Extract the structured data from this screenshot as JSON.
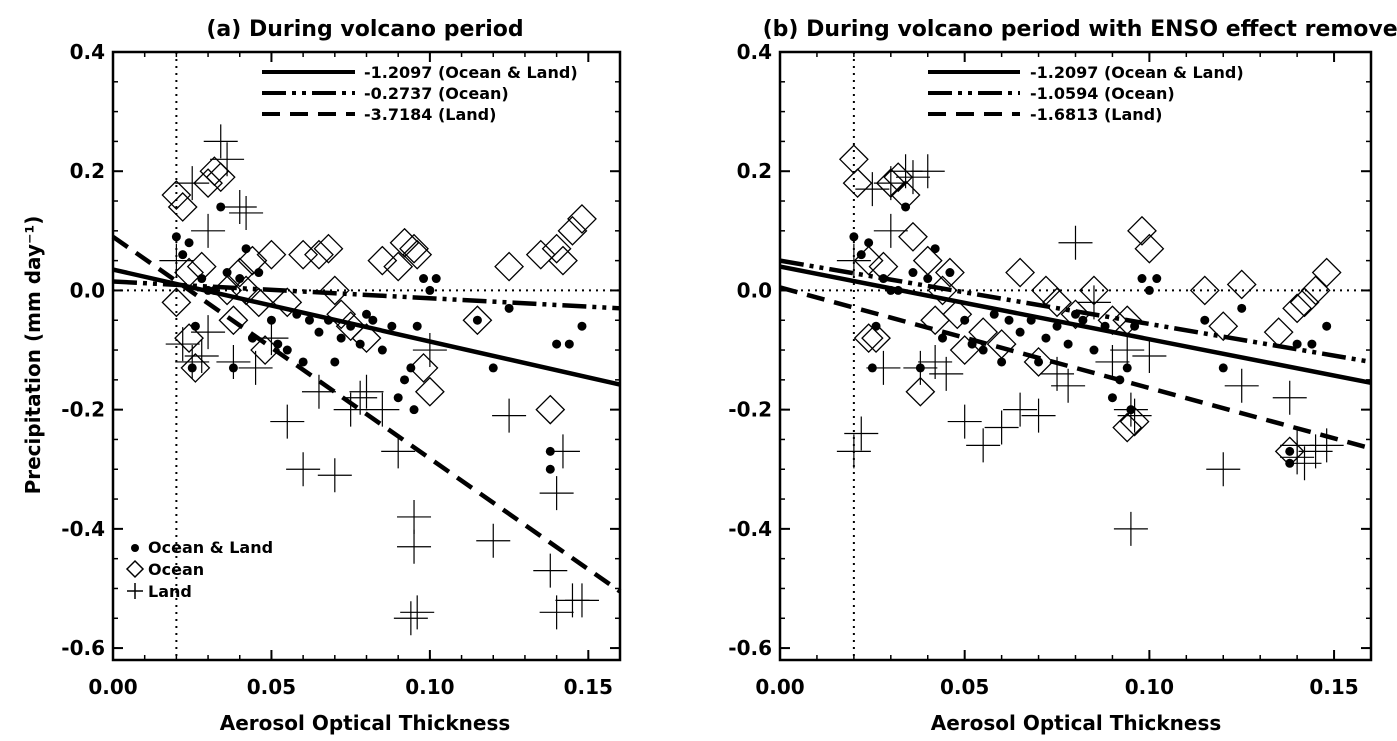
{
  "chart_data": [
    {
      "type": "scatter",
      "title": "(a) During volcano period",
      "xlabel": "Aerosol Optical Thickness",
      "ylabel": "Precipitation (mm day⁻¹)",
      "xlim": [
        0.0,
        0.16
      ],
      "ylim": [
        -0.62,
        0.4
      ],
      "xticks": [
        "0.00",
        "0.05",
        "0.10",
        "0.15"
      ],
      "yticks": [
        "-0.6",
        "-0.4",
        "-0.2",
        "0.0",
        "0.2",
        "0.4"
      ],
      "reference_lines": {
        "vertical_x": 0.02,
        "horizontal_y": 0.0
      },
      "grid": false,
      "fit_legend_placement": "top",
      "marker_legend_placement": "bottom-left",
      "fit_lines": [
        {
          "label": "-1.2097 (Ocean & Land)",
          "style": "solid",
          "x": [
            0.0,
            0.16
          ],
          "y": [
            0.035,
            -0.158
          ]
        },
        {
          "label": "-0.2737 (Ocean)",
          "style": "dash-dot-dot",
          "x": [
            0.0,
            0.16
          ],
          "y": [
            0.015,
            -0.03
          ]
        },
        {
          "label": "-3.7184 (Land)",
          "style": "dashed",
          "x": [
            0.0,
            0.16
          ],
          "y": [
            0.09,
            -0.505
          ]
        }
      ],
      "series": [
        {
          "name": "Ocean & Land",
          "marker": "dot",
          "x": [
            0.02,
            0.022,
            0.024,
            0.025,
            0.026,
            0.028,
            0.03,
            0.032,
            0.034,
            0.036,
            0.038,
            0.04,
            0.042,
            0.044,
            0.046,
            0.05,
            0.052,
            0.055,
            0.058,
            0.06,
            0.062,
            0.065,
            0.068,
            0.07,
            0.072,
            0.075,
            0.078,
            0.08,
            0.082,
            0.085,
            0.088,
            0.09,
            0.092,
            0.094,
            0.095,
            0.096,
            0.098,
            0.1,
            0.102,
            0.115,
            0.12,
            0.125,
            0.138,
            0.138,
            0.14,
            0.144,
            0.148
          ],
          "y": [
            0.09,
            0.06,
            0.08,
            -0.13,
            -0.06,
            0.02,
            0.0,
            0.0,
            0.14,
            0.03,
            -0.13,
            0.02,
            0.07,
            -0.08,
            0.03,
            -0.05,
            -0.09,
            -0.1,
            -0.04,
            -0.12,
            -0.05,
            -0.07,
            -0.05,
            -0.12,
            -0.08,
            -0.06,
            -0.09,
            -0.04,
            -0.05,
            -0.1,
            -0.06,
            -0.18,
            -0.15,
            -0.13,
            -0.2,
            -0.06,
            0.02,
            0.0,
            0.02,
            -0.05,
            -0.13,
            -0.03,
            -0.27,
            -0.3,
            -0.09,
            -0.09,
            -0.06
          ]
        },
        {
          "name": "Ocean",
          "marker": "diamond",
          "x": [
            0.02,
            0.022,
            0.024,
            0.026,
            0.028,
            0.03,
            0.032,
            0.034,
            0.036,
            0.038,
            0.04,
            0.042,
            0.044,
            0.046,
            0.048,
            0.05,
            0.055,
            0.06,
            0.065,
            0.068,
            0.07,
            0.072,
            0.075,
            0.08,
            0.085,
            0.09,
            0.092,
            0.095,
            0.096,
            0.098,
            0.1,
            0.115,
            0.125,
            0.135,
            0.14,
            0.142,
            0.145,
            0.148,
            0.138,
            0.02,
            0.024
          ],
          "y": [
            0.16,
            0.14,
            0.03,
            -0.13,
            0.04,
            0.18,
            0.2,
            0.19,
            0.0,
            -0.05,
            0.03,
            0.0,
            0.05,
            -0.02,
            -0.1,
            0.06,
            -0.02,
            0.06,
            0.06,
            0.07,
            0.0,
            -0.04,
            -0.06,
            -0.08,
            0.05,
            0.04,
            0.08,
            0.07,
            0.06,
            -0.13,
            -0.17,
            -0.05,
            0.04,
            0.06,
            0.07,
            0.05,
            0.1,
            0.12,
            -0.2,
            -0.02,
            -0.08
          ]
        },
        {
          "name": "Land",
          "marker": "plus",
          "x": [
            0.02,
            0.022,
            0.025,
            0.028,
            0.03,
            0.034,
            0.036,
            0.038,
            0.04,
            0.042,
            0.045,
            0.05,
            0.055,
            0.06,
            0.065,
            0.07,
            0.075,
            0.078,
            0.08,
            0.085,
            0.09,
            0.095,
            0.095,
            0.096,
            0.1,
            0.12,
            0.125,
            0.138,
            0.14,
            0.14,
            0.142,
            0.145,
            0.148,
            0.094,
            0.03,
            0.025
          ],
          "y": [
            0.05,
            -0.09,
            0.18,
            -0.11,
            0.1,
            0.25,
            0.22,
            -0.12,
            0.14,
            0.13,
            -0.13,
            -0.08,
            -0.22,
            -0.3,
            -0.17,
            -0.31,
            -0.2,
            -0.18,
            -0.17,
            -0.2,
            -0.27,
            -0.38,
            -0.43,
            -0.54,
            -0.1,
            -0.42,
            -0.21,
            -0.47,
            -0.34,
            -0.54,
            -0.27,
            -0.52,
            -0.52,
            -0.55,
            -0.07,
            -0.12
          ]
        }
      ]
    },
    {
      "type": "scatter",
      "title": "(b) During volcano period with ENSO effect removed",
      "xlabel": "Aerosol Optical Thickness",
      "ylabel": "",
      "xlim": [
        0.0,
        0.16
      ],
      "ylim": [
        -0.62,
        0.4
      ],
      "xticks": [
        "0.00",
        "0.05",
        "0.10",
        "0.15"
      ],
      "yticks": [
        "-0.6",
        "-0.4",
        "-0.2",
        "0.0",
        "0.2",
        "0.4"
      ],
      "reference_lines": {
        "vertical_x": 0.02,
        "horizontal_y": 0.0
      },
      "grid": false,
      "fit_legend_placement": "top",
      "fit_lines": [
        {
          "label": "-1.2097 (Ocean & Land)",
          "style": "solid",
          "x": [
            0.0,
            0.16
          ],
          "y": [
            0.04,
            -0.155
          ]
        },
        {
          "label": "-1.0594 (Ocean)",
          "style": "dash-dot-dot",
          "x": [
            0.0,
            0.16
          ],
          "y": [
            0.05,
            -0.12
          ]
        },
        {
          "label": "-1.6813 (Land)",
          "style": "dashed",
          "x": [
            0.0,
            0.16
          ],
          "y": [
            0.005,
            -0.265
          ]
        }
      ],
      "series": [
        {
          "name": "Ocean & Land",
          "marker": "dot",
          "x": [
            0.02,
            0.022,
            0.024,
            0.025,
            0.026,
            0.028,
            0.03,
            0.032,
            0.034,
            0.036,
            0.038,
            0.04,
            0.042,
            0.044,
            0.046,
            0.05,
            0.052,
            0.055,
            0.058,
            0.06,
            0.062,
            0.065,
            0.068,
            0.07,
            0.072,
            0.075,
            0.078,
            0.08,
            0.082,
            0.085,
            0.088,
            0.09,
            0.092,
            0.094,
            0.095,
            0.096,
            0.098,
            0.1,
            0.102,
            0.115,
            0.12,
            0.125,
            0.138,
            0.138,
            0.14,
            0.144,
            0.148
          ],
          "y": [
            0.09,
            0.06,
            0.08,
            -0.13,
            -0.06,
            0.02,
            0.0,
            0.0,
            0.14,
            0.03,
            -0.13,
            0.02,
            0.07,
            -0.08,
            0.03,
            -0.05,
            -0.09,
            -0.1,
            -0.04,
            -0.12,
            -0.05,
            -0.07,
            -0.05,
            -0.12,
            -0.08,
            -0.06,
            -0.09,
            -0.04,
            -0.05,
            -0.1,
            -0.06,
            -0.18,
            -0.15,
            -0.13,
            -0.2,
            -0.06,
            0.02,
            0.0,
            0.02,
            -0.05,
            -0.13,
            -0.03,
            -0.27,
            -0.29,
            -0.09,
            -0.09,
            -0.06
          ]
        },
        {
          "name": "Ocean",
          "marker": "diamond",
          "x": [
            0.02,
            0.021,
            0.024,
            0.026,
            0.028,
            0.03,
            0.032,
            0.034,
            0.036,
            0.038,
            0.04,
            0.042,
            0.044,
            0.046,
            0.048,
            0.05,
            0.055,
            0.06,
            0.065,
            0.07,
            0.072,
            0.075,
            0.08,
            0.085,
            0.09,
            0.094,
            0.096,
            0.098,
            0.1,
            0.115,
            0.12,
            0.125,
            0.135,
            0.138,
            0.14,
            0.142,
            0.145,
            0.148,
            0.094,
            0.024
          ],
          "y": [
            0.22,
            0.18,
            0.05,
            -0.08,
            0.04,
            0.18,
            0.19,
            0.16,
            0.09,
            -0.17,
            0.05,
            -0.05,
            0.0,
            0.03,
            -0.04,
            -0.1,
            -0.07,
            -0.09,
            0.03,
            -0.12,
            0.0,
            -0.02,
            -0.04,
            0.0,
            -0.05,
            -0.23,
            -0.22,
            0.1,
            0.07,
            0.0,
            -0.06,
            0.01,
            -0.07,
            -0.27,
            -0.03,
            -0.02,
            0.0,
            0.03,
            -0.05,
            -0.08
          ]
        },
        {
          "name": "Land",
          "marker": "plus",
          "x": [
            0.02,
            0.022,
            0.025,
            0.028,
            0.03,
            0.034,
            0.036,
            0.038,
            0.04,
            0.042,
            0.045,
            0.05,
            0.055,
            0.06,
            0.065,
            0.07,
            0.075,
            0.078,
            0.08,
            0.085,
            0.09,
            0.095,
            0.096,
            0.1,
            0.12,
            0.125,
            0.138,
            0.14,
            0.14,
            0.142,
            0.145,
            0.148,
            0.094,
            0.03,
            0.095,
            0.02
          ],
          "y": [
            0.05,
            -0.24,
            0.17,
            -0.13,
            0.18,
            0.2,
            0.19,
            -0.13,
            0.2,
            -0.12,
            -0.14,
            -0.22,
            -0.26,
            -0.23,
            -0.2,
            -0.21,
            -0.14,
            -0.16,
            0.08,
            -0.02,
            -0.12,
            -0.4,
            -0.21,
            -0.11,
            -0.3,
            -0.16,
            -0.18,
            -0.26,
            -0.28,
            -0.29,
            -0.27,
            -0.26,
            -0.1,
            0.1,
            -0.2,
            -0.27
          ]
        }
      ]
    }
  ],
  "legend_markers": [
    {
      "label": "Ocean & Land",
      "marker": "dot"
    },
    {
      "label": "Ocean",
      "marker": "diamond"
    },
    {
      "label": "Land",
      "marker": "plus"
    }
  ]
}
